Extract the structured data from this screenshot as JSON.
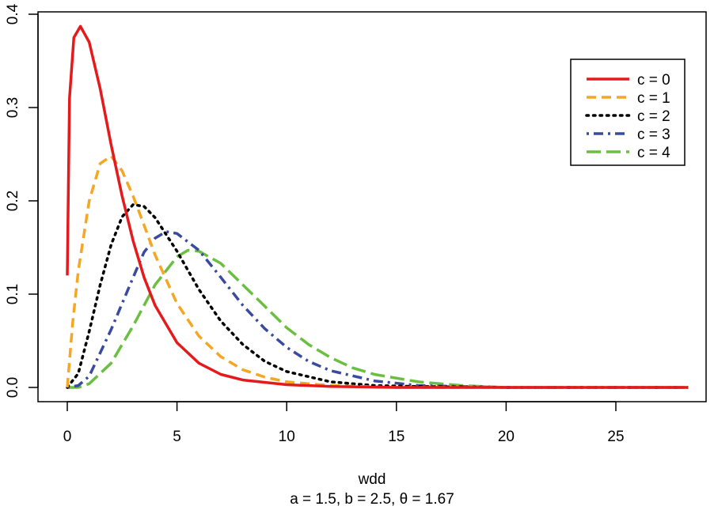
{
  "chart_data": {
    "type": "line",
    "title": "",
    "xlabel": "wdd",
    "subtitle": "a = 1.5, b = 2.5, θ = 1.67",
    "ylabel": "",
    "xlim": [
      0,
      28.3
    ],
    "ylim": [
      0,
      0.4
    ],
    "xticks": [
      0,
      5,
      10,
      15,
      20,
      25
    ],
    "xtick_labels": [
      "0",
      "5",
      "10",
      "15",
      "20",
      "25"
    ],
    "yticks": [
      0.0,
      0.1,
      0.2,
      0.3,
      0.4
    ],
    "ytick_labels": [
      "0.0",
      "0.1",
      "0.2",
      "0.3",
      "0.4"
    ],
    "grid": false,
    "legend_position": "top-right",
    "series": [
      {
        "name": "c = 0",
        "color": "#e41a1c",
        "style": "solid",
        "x": [
          0,
          0.1,
          0.3,
          0.6,
          1.0,
          1.5,
          2.0,
          2.5,
          3.0,
          3.5,
          4.0,
          5.0,
          6.0,
          7.0,
          8.0,
          10.0,
          12.0,
          15.0,
          20.0,
          28.3
        ],
        "y": [
          0.12,
          0.31,
          0.375,
          0.387,
          0.37,
          0.32,
          0.26,
          0.205,
          0.157,
          0.118,
          0.088,
          0.048,
          0.026,
          0.014,
          0.008,
          0.003,
          0.001,
          0.0,
          0.0,
          0.0
        ]
      },
      {
        "name": "c = 1",
        "color": "#f5a623",
        "style": "dashed",
        "x": [
          0,
          0.25,
          0.5,
          1.0,
          1.5,
          2.0,
          2.5,
          3.0,
          3.5,
          4.0,
          5.0,
          6.0,
          7.0,
          8.0,
          9.0,
          10.0,
          12.0,
          15.0,
          20.0,
          28.3
        ],
        "y": [
          0.0,
          0.07,
          0.125,
          0.2,
          0.24,
          0.248,
          0.232,
          0.205,
          0.174,
          0.142,
          0.09,
          0.055,
          0.033,
          0.019,
          0.011,
          0.006,
          0.002,
          0.0,
          0.0,
          0.0
        ]
      },
      {
        "name": "c = 2",
        "color": "#000000",
        "style": "dotted",
        "x": [
          0,
          0.5,
          1.0,
          1.5,
          2.0,
          2.5,
          3.0,
          3.5,
          4.0,
          5.0,
          6.0,
          7.0,
          8.0,
          9.0,
          10.0,
          12.0,
          14.0,
          16.0,
          20.0,
          28.3
        ],
        "y": [
          0.0,
          0.015,
          0.06,
          0.11,
          0.153,
          0.183,
          0.196,
          0.194,
          0.182,
          0.146,
          0.105,
          0.071,
          0.046,
          0.028,
          0.017,
          0.006,
          0.002,
          0.001,
          0.0,
          0.0
        ]
      },
      {
        "name": "c = 3",
        "color": "#3a4a9f",
        "style": "dashdot",
        "x": [
          0,
          0.5,
          1.0,
          2.0,
          3.0,
          3.5,
          4.0,
          4.5,
          5.0,
          6.0,
          7.0,
          8.0,
          9.0,
          10.0,
          11.0,
          12.0,
          14.0,
          16.0,
          20.0,
          28.3
        ],
        "y": [
          0.0,
          0.002,
          0.012,
          0.062,
          0.118,
          0.145,
          0.16,
          0.167,
          0.165,
          0.147,
          0.118,
          0.088,
          0.063,
          0.043,
          0.028,
          0.018,
          0.007,
          0.002,
          0.0,
          0.0
        ]
      },
      {
        "name": "c = 4",
        "color": "#6abf40",
        "style": "longdash",
        "x": [
          0,
          0.5,
          1.0,
          2.0,
          3.0,
          4.0,
          5.0,
          5.5,
          6.0,
          7.0,
          8.0,
          9.0,
          10.0,
          11.0,
          12.0,
          13.0,
          14.0,
          16.0,
          18.0,
          20.0,
          28.3
        ],
        "y": [
          0.0,
          0.0,
          0.004,
          0.026,
          0.066,
          0.11,
          0.14,
          0.147,
          0.146,
          0.133,
          0.11,
          0.087,
          0.064,
          0.046,
          0.032,
          0.021,
          0.014,
          0.006,
          0.002,
          0.0,
          0.0
        ]
      }
    ]
  }
}
